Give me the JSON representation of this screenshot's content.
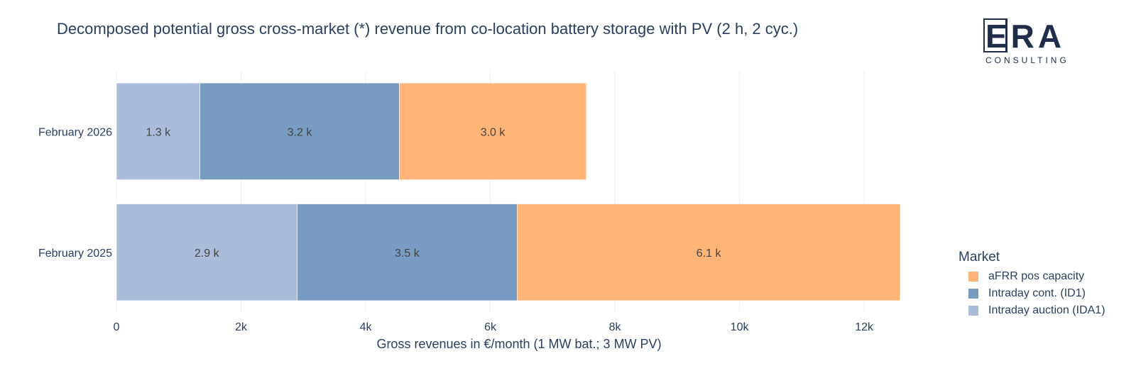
{
  "title": "Decomposed potential gross cross-market (*) revenue from co-location battery storage with PV (2 h, 2 cyc.)",
  "logo": {
    "word": "ERA",
    "subtitle": "CONSULTING"
  },
  "legend": {
    "title": "Market",
    "items": [
      {
        "label": "aFRR pos capacity",
        "color": "#ffb578"
      },
      {
        "label": "Intraday cont. (ID1)",
        "color": "#789bc2"
      },
      {
        "label": "Intraday auction (IDA1)",
        "color": "#abbcd8"
      }
    ]
  },
  "chart_data": {
    "type": "bar",
    "orientation": "horizontal",
    "stacked": true,
    "categories": [
      "February 2025",
      "February 2026"
    ],
    "series": [
      {
        "name": "Intraday auction (IDA1)",
        "color": "#abbcd8",
        "values": [
          2900,
          1340
        ],
        "labels": [
          "2.9 k",
          "1.3 k"
        ]
      },
      {
        "name": "Intraday cont. (ID1)",
        "color": "#789bc2",
        "values": [
          3530,
          3200
        ],
        "labels": [
          "3.5 k",
          "3.2 k"
        ]
      },
      {
        "name": "aFRR pos capacity",
        "color": "#ffb578",
        "values": [
          6150,
          3000
        ],
        "labels": [
          "6.1 k",
          "3.0 k"
        ]
      }
    ],
    "xlabel": "Gross revenues in €/month (1 MW bat.; 3 MW PV)",
    "ylabel": "",
    "xlim": [
      0,
      12580
    ],
    "xticks": [
      {
        "value": 0,
        "label": "0"
      },
      {
        "value": 2000,
        "label": "2k"
      },
      {
        "value": 4000,
        "label": "4k"
      },
      {
        "value": 6000,
        "label": "6k"
      },
      {
        "value": 8000,
        "label": "8k"
      },
      {
        "value": 10000,
        "label": "10k"
      },
      {
        "value": 12000,
        "label": "12k"
      }
    ],
    "grid": true,
    "legend_position": "right"
  }
}
